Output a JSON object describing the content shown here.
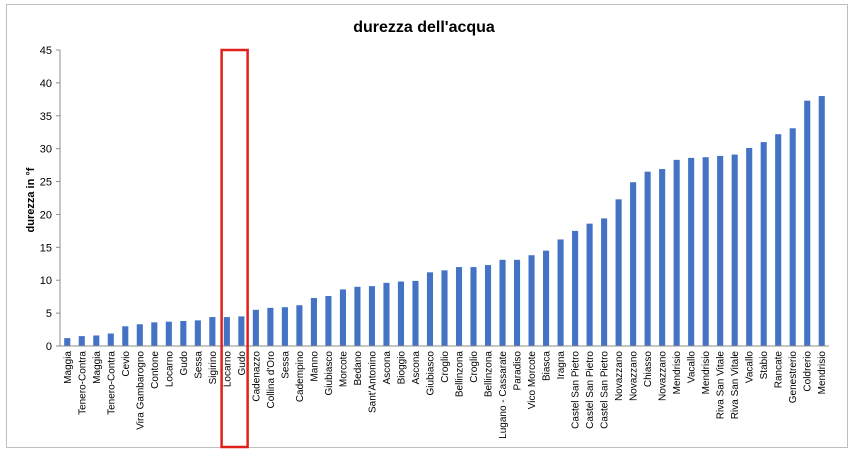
{
  "chart_data": {
    "type": "bar",
    "title": "durezza dell'acqua",
    "xlabel": "",
    "ylabel": "durezza in °f",
    "ylim": [
      0,
      45
    ],
    "yticks": [
      0,
      5,
      10,
      15,
      20,
      25,
      30,
      35,
      40,
      45
    ],
    "grid": false,
    "legend": "none",
    "bar_color": "#4472C4",
    "highlight_color": "#E0201B",
    "highlight_categories": [
      11,
      12
    ],
    "categories": [
      "Maggia",
      "Tenero-Contra",
      "Maggia",
      "Tenero-Contra",
      "Cevio",
      "Vira Gambarogno",
      "Contone",
      "Locarno",
      "Gudo",
      "Sessa",
      "Sigirino",
      "Locarno",
      "Gudo",
      "Cadenazzo",
      "Collina d'Oro",
      "Sessa",
      "Cadempino",
      "Manno",
      "Giubiasco",
      "Morcote",
      "Bedano",
      "Sant'Antonino",
      "Ascona",
      "Bioggio",
      "Ascona",
      "Giubiasco",
      "Croglio",
      "Bellinzona",
      "Croglio",
      "Bellinzona",
      "Lugano - Cassarate",
      "Paradiso",
      "Vico Morcote",
      "Biasca",
      "Iragna",
      "Castel San Pietro",
      "Castel San Pietro",
      "Castel San Pietro",
      "Novazzano",
      "Novazzano",
      "Chiasso",
      "Novazzano",
      "Mendrisio",
      "Vacallo",
      "Mendrisio",
      "Riva San Vitale",
      "Riva San Vitale",
      "Vacallo",
      "Stabio",
      "Rancate",
      "Genestrerio",
      "Coldrerio",
      "Mendrisio"
    ],
    "values": [
      1.2,
      1.5,
      1.6,
      1.9,
      3.0,
      3.3,
      3.6,
      3.7,
      3.8,
      3.9,
      4.4,
      4.4,
      4.5,
      5.5,
      5.8,
      5.9,
      6.2,
      7.3,
      7.6,
      8.6,
      9.0,
      9.1,
      9.6,
      9.8,
      9.9,
      11.2,
      11.5,
      12.0,
      12.0,
      12.3,
      13.1,
      13.1,
      13.8,
      14.5,
      16.2,
      17.5,
      18.6,
      19.4,
      22.3,
      24.9,
      26.5,
      26.9,
      28.3,
      28.6,
      28.7,
      28.9,
      29.1,
      30.1,
      31.0,
      32.2,
      33.1,
      37.3,
      38.0
    ]
  }
}
